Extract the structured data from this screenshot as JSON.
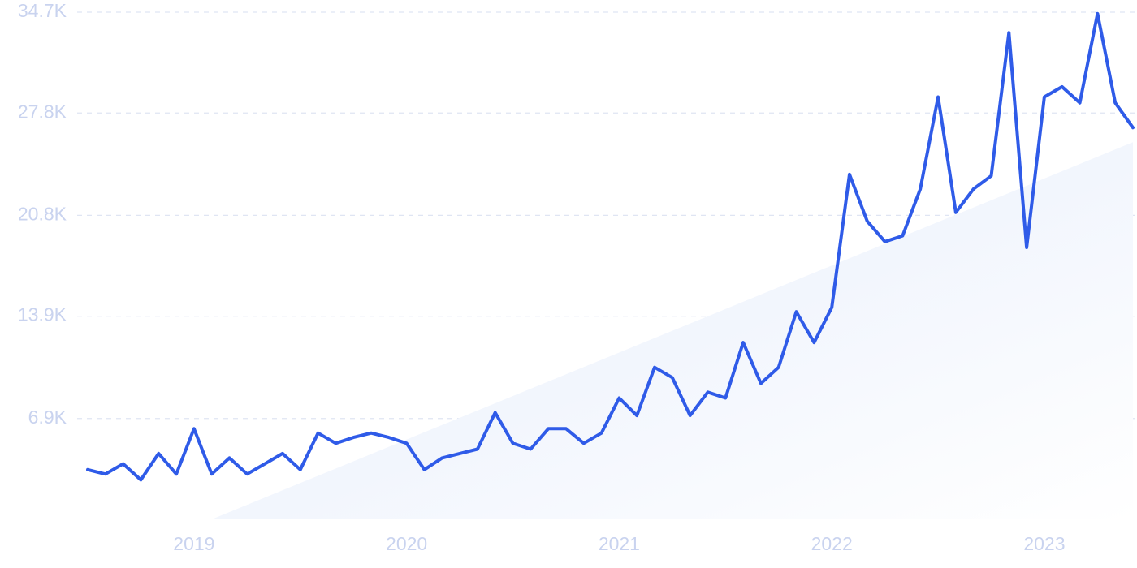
{
  "chart_data": {
    "type": "line",
    "title": "",
    "xlabel": "",
    "ylabel": "",
    "y_ticks": [
      {
        "value": 0,
        "label": ""
      },
      {
        "value": 6900,
        "label": "6.9K"
      },
      {
        "value": 13900,
        "label": "13.9K"
      },
      {
        "value": 20800,
        "label": "20.8K"
      },
      {
        "value": 27800,
        "label": "27.8K"
      },
      {
        "value": 34700,
        "label": "34.7K"
      }
    ],
    "x_ticks": [
      {
        "value": "2019-01",
        "label": "2019"
      },
      {
        "value": "2020-01",
        "label": "2020"
      },
      {
        "value": "2021-01",
        "label": "2021"
      },
      {
        "value": "2022-01",
        "label": "2022"
      },
      {
        "value": "2023-01",
        "label": "2023"
      }
    ],
    "xlim": [
      "2018-07",
      "2023-06"
    ],
    "ylim": [
      0,
      34700
    ],
    "grid": true,
    "colors": {
      "line": "#2f5be8",
      "trend_fill_start": "#e4ecfb",
      "trend_fill_end": "#ffffff",
      "tick_text": "#c9d3ef",
      "grid": "#dfe5f3"
    },
    "trend": {
      "x": [
        "2019-02",
        "2023-06"
      ],
      "y": [
        0,
        25800
      ]
    },
    "series": [
      {
        "x": [
          "2018-07",
          "2018-08",
          "2018-09",
          "2018-10",
          "2018-11",
          "2018-12",
          "2019-01",
          "2019-02",
          "2019-03",
          "2019-04",
          "2019-05",
          "2019-06",
          "2019-07",
          "2019-08",
          "2019-09",
          "2019-10",
          "2019-11",
          "2019-12",
          "2020-01",
          "2020-02",
          "2020-03",
          "2020-04",
          "2020-05",
          "2020-06",
          "2020-07",
          "2020-08",
          "2020-09",
          "2020-10",
          "2020-11",
          "2020-12",
          "2021-01",
          "2021-02",
          "2021-03",
          "2021-04",
          "2021-05",
          "2021-06",
          "2021-07",
          "2021-08",
          "2021-09",
          "2021-10",
          "2021-11",
          "2021-12",
          "2022-01",
          "2022-02",
          "2022-03",
          "2022-04",
          "2022-05",
          "2022-06",
          "2022-07",
          "2022-08",
          "2022-09",
          "2022-10",
          "2022-11",
          "2022-12",
          "2023-01",
          "2023-02",
          "2023-03",
          "2023-04",
          "2023-05",
          "2023-06"
        ],
        "values": [
          3400,
          3100,
          3800,
          2700,
          4500,
          3100,
          6200,
          3100,
          4200,
          3100,
          3800,
          4500,
          3400,
          5900,
          5200,
          5600,
          5900,
          5600,
          5200,
          3400,
          4200,
          4500,
          4800,
          7300,
          5200,
          4800,
          6200,
          6200,
          5200,
          5900,
          8300,
          7100,
          10400,
          9700,
          7100,
          8700,
          8300,
          12100,
          9300,
          10400,
          14200,
          12100,
          14500,
          23600,
          20400,
          19000,
          19400,
          22600,
          28900,
          21000,
          22600,
          23500,
          33300,
          18600,
          28900,
          29600,
          28500,
          34600,
          28500,
          26800
        ]
      }
    ]
  }
}
